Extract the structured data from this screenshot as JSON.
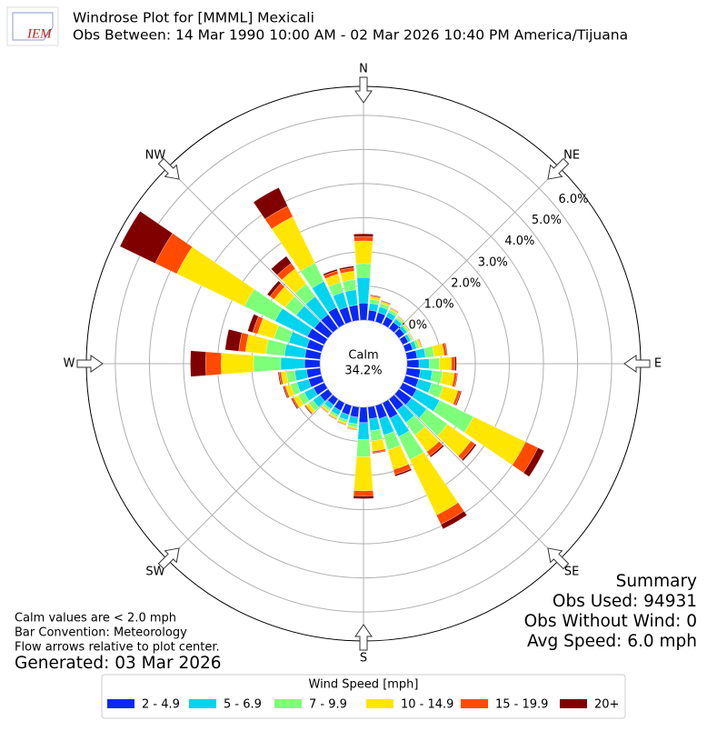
{
  "chart_data": {
    "type": "windrose",
    "logo": "IEM",
    "title": "Windrose Plot for [MMML] Mexicali",
    "subtitle": "Obs Between: 14 Mar 1990 10:00 AM - 02 Mar 2026 10:40 PM America/Tijuana",
    "x": [
      0,
      10,
      20,
      30,
      40,
      50,
      60,
      70,
      80,
      90,
      100,
      110,
      120,
      130,
      140,
      150,
      160,
      170,
      180,
      190,
      200,
      210,
      220,
      230,
      240,
      250,
      260,
      270,
      280,
      290,
      300,
      310,
      320,
      330,
      340,
      350
    ],
    "direction_labels": [
      {
        "value": 0,
        "label": "N"
      },
      {
        "value": 45,
        "label": "NE"
      },
      {
        "value": 90,
        "label": "E"
      },
      {
        "value": 135,
        "label": "SE"
      },
      {
        "value": 180,
        "label": "S"
      },
      {
        "value": 225,
        "label": "SW"
      },
      {
        "value": 270,
        "label": "W"
      },
      {
        "value": 315,
        "label": "NW"
      }
    ],
    "rlim": [
      0,
      6.85
    ],
    "rticks": [
      {
        "value": 0,
        "label": "0.0%"
      },
      {
        "value": 1,
        "label": "1.0%"
      },
      {
        "value": 2,
        "label": "2.0%"
      },
      {
        "value": 3,
        "label": "3.0%"
      },
      {
        "value": 4,
        "label": "4.0%"
      },
      {
        "value": 5,
        "label": "5.0%"
      },
      {
        "value": 6,
        "label": "6.0%"
      }
    ],
    "grid": true,
    "calm": {
      "label": "Calm",
      "value": 34.2,
      "value_label": "34.2%"
    },
    "legend_title": "Wind Speed [mph]",
    "series": [
      {
        "name": "2 - 4.9",
        "color": "#0a28f5",
        "values": [
          0.5,
          0.3,
          0.28,
          0.25,
          0.22,
          0.2,
          0.18,
          0.22,
          0.3,
          0.35,
          0.4,
          0.4,
          0.45,
          0.45,
          0.4,
          0.5,
          0.4,
          0.35,
          0.45,
          0.3,
          0.28,
          0.25,
          0.22,
          0.3,
          0.35,
          0.4,
          0.4,
          0.45,
          0.45,
          0.45,
          0.55,
          0.5,
          0.5,
          0.55,
          0.45,
          0.45
        ]
      },
      {
        "name": "5 - 6.9",
        "color": "#00d4ee",
        "values": [
          0.75,
          0.2,
          0.18,
          0.15,
          0.12,
          0.1,
          0.08,
          0.12,
          0.25,
          0.3,
          0.35,
          0.4,
          0.75,
          0.55,
          0.45,
          0.6,
          0.5,
          0.35,
          0.5,
          0.2,
          0.16,
          0.15,
          0.14,
          0.25,
          0.3,
          0.35,
          0.35,
          0.7,
          0.6,
          0.55,
          1.05,
          0.65,
          0.65,
          0.85,
          0.45,
          0.45
        ]
      },
      {
        "name": "7 - 9.9",
        "color": "#7dff7a",
        "values": [
          0.4,
          0.12,
          0.1,
          0.08,
          0.06,
          0.05,
          0.05,
          0.08,
          0.25,
          0.3,
          0.3,
          0.35,
          1.1,
          0.75,
          0.45,
          0.75,
          0.45,
          0.3,
          0.5,
          0.1,
          0.08,
          0.07,
          0.07,
          0.15,
          0.2,
          0.2,
          0.25,
          0.8,
          0.55,
          0.45,
          1.0,
          0.4,
          0.45,
          0.6,
          0.3,
          0.3
        ]
      },
      {
        "name": "10 - 14.9",
        "color": "#ffe600",
        "values": [
          0.67,
          0.08,
          0.05,
          0.04,
          0.03,
          0.03,
          0.02,
          0.06,
          0.3,
          0.35,
          0.35,
          0.45,
          1.7,
          0.85,
          0.6,
          1.8,
          0.6,
          0.3,
          1.0,
          0.05,
          0.05,
          0.05,
          0.05,
          0.1,
          0.15,
          0.15,
          0.15,
          0.95,
          0.6,
          0.5,
          2.2,
          0.4,
          0.55,
          1.5,
          0.25,
          0.25
        ]
      },
      {
        "name": "15 - 19.9",
        "color": "#ff4a00",
        "values": [
          0.13,
          0.03,
          0.02,
          0.02,
          0.01,
          0.01,
          0.01,
          0.02,
          0.08,
          0.1,
          0.08,
          0.08,
          0.4,
          0.15,
          0.15,
          0.3,
          0.15,
          0.05,
          0.15,
          0.02,
          0.02,
          0.02,
          0.02,
          0.03,
          0.05,
          0.05,
          0.06,
          0.45,
          0.2,
          0.15,
          0.7,
          0.15,
          0.2,
          0.35,
          0.1,
          0.1
        ]
      },
      {
        "name": "20+",
        "color": "#800000",
        "values": [
          0.08,
          0.02,
          0.02,
          0.01,
          0.01,
          0.01,
          0.01,
          0.01,
          0.02,
          0.05,
          0.02,
          0.03,
          0.2,
          0.05,
          0.05,
          0.15,
          0.05,
          0.02,
          0.08,
          0.01,
          0.01,
          0.01,
          0.01,
          0.02,
          0.03,
          0.03,
          0.03,
          0.45,
          0.4,
          0.15,
          1.15,
          0.1,
          0.25,
          0.6,
          0.05,
          0.05
        ]
      }
    ],
    "summary": [
      "Summary",
      "Obs Used: 94931",
      "Obs Without Wind: 0",
      "Avg Speed: 6.0 mph"
    ],
    "notes": [
      "Calm values are < 2.0 mph",
      "Bar Convention: Meteorology",
      "Flow arrows relative to plot center."
    ],
    "generated": "Generated: 03 Mar 2026"
  }
}
